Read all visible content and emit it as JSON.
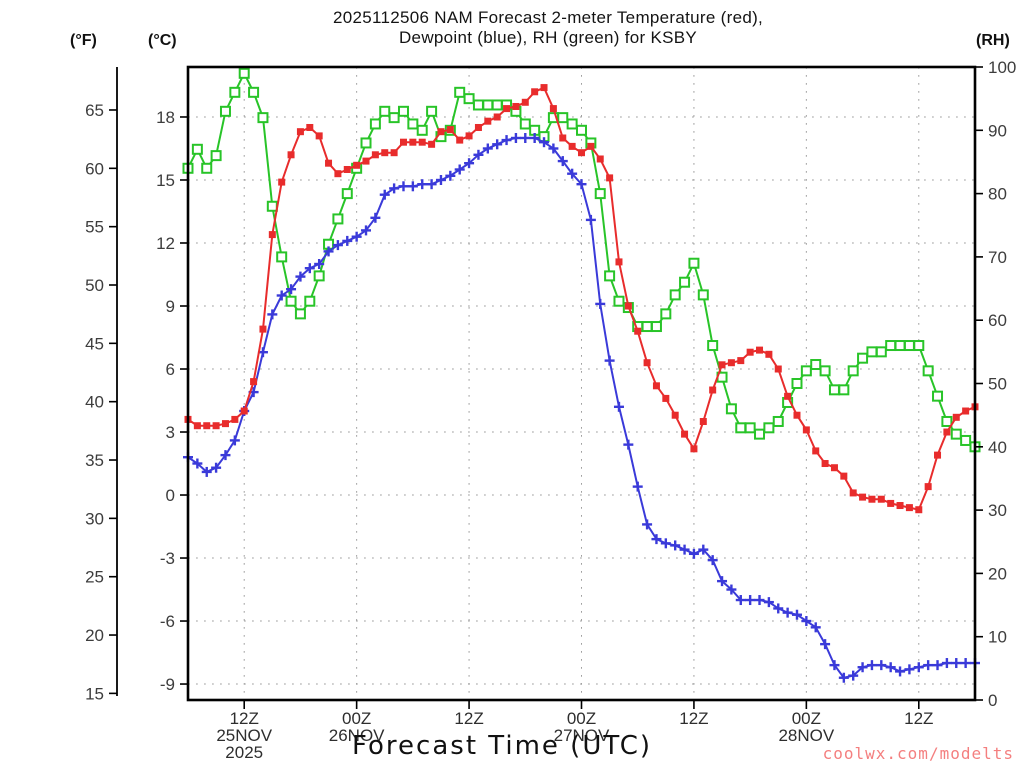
{
  "title": {
    "line1": "2025112506 NAM Forecast 2-meter Temperature (red),",
    "line2": "Dewpoint (blue), RH (green) for KSBY"
  },
  "axes": {
    "fahrenheit": {
      "label": "(°F)",
      "ticks": [
        65,
        60,
        55,
        50,
        45,
        40,
        35,
        30,
        25,
        20,
        15
      ]
    },
    "celsius": {
      "label": "(°C)",
      "ticks": [
        18,
        15,
        12,
        9,
        6,
        3,
        0,
        -3,
        -6,
        -9
      ]
    },
    "rh": {
      "label": "(RH)",
      "ticks": [
        100,
        90,
        80,
        70,
        60,
        50,
        40,
        30,
        20,
        10,
        0
      ]
    }
  },
  "x_axis": {
    "label": "Forecast Time (UTC)",
    "ticks": [
      {
        "hour": 6,
        "label": "12Z",
        "date": "25NOV",
        "year": "2025"
      },
      {
        "hour": 18,
        "label": "00Z",
        "date": "26NOV",
        "year": ""
      },
      {
        "hour": 30,
        "label": "12Z",
        "date": "",
        "year": ""
      },
      {
        "hour": 42,
        "label": "00Z",
        "date": "27NOV",
        "year": ""
      },
      {
        "hour": 54,
        "label": "12Z",
        "date": "",
        "year": ""
      },
      {
        "hour": 66,
        "label": "00Z",
        "date": "28NOV",
        "year": ""
      },
      {
        "hour": 78,
        "label": "12Z",
        "date": "",
        "year": ""
      }
    ]
  },
  "watermark": {
    "text": "coolwx.com/modelts",
    "color": "#f47f7f"
  },
  "colors": {
    "temperature": "#e82c2c",
    "dewpoint": "#3a3ad9",
    "rh": "#28c428",
    "grid": "#a0a0a0",
    "frame": "#000000",
    "tick_text": "#3d3d3d"
  },
  "chart_data": {
    "type": "line",
    "model_run": "2025112506",
    "model": "NAM",
    "station": "KSBY",
    "x_unit": "hours since 06Z 25NOV2025",
    "interval_hours": 1,
    "xlim_hours": [
      0,
      84
    ],
    "ylim_celsius": [
      -9.76,
      20.38
    ],
    "ylim_rh": [
      0,
      100
    ],
    "grid": true,
    "series": [
      {
        "name": "2-meter Temperature",
        "unit": "°C",
        "axis": "celsius",
        "color": "#e82c2c",
        "marker": "filled-square",
        "values": [
          3.6,
          3.3,
          3.3,
          3.3,
          3.4,
          3.6,
          4.0,
          5.4,
          7.9,
          12.4,
          14.9,
          16.2,
          17.3,
          17.5,
          17.1,
          15.8,
          15.3,
          15.5,
          15.7,
          15.9,
          16.2,
          16.3,
          16.3,
          16.8,
          16.8,
          16.8,
          16.7,
          17.3,
          17.4,
          16.9,
          17.1,
          17.5,
          17.8,
          18.0,
          18.4,
          18.5,
          18.7,
          19.2,
          19.4,
          18.4,
          17.0,
          16.6,
          16.3,
          16.6,
          16.0,
          15.1,
          11.1,
          9.0,
          7.8,
          6.3,
          5.2,
          4.6,
          3.8,
          2.9,
          2.2,
          3.5,
          5.0,
          6.2,
          6.3,
          6.4,
          6.8,
          6.9,
          6.7,
          6.0,
          4.7,
          3.8,
          3.1,
          2.1,
          1.5,
          1.3,
          0.9,
          0.1,
          -0.1,
          -0.2,
          -0.2,
          -0.4,
          -0.5,
          -0.6,
          -0.7,
          0.4,
          1.9,
          3.0,
          3.7,
          4.0,
          4.2
        ]
      },
      {
        "name": "Dewpoint",
        "unit": "°C",
        "axis": "celsius",
        "color": "#3a3ad9",
        "marker": "plus",
        "values": [
          1.8,
          1.5,
          1.1,
          1.3,
          1.9,
          2.6,
          4.0,
          4.9,
          6.8,
          8.6,
          9.5,
          9.8,
          10.4,
          10.8,
          11.0,
          11.6,
          11.9,
          12.1,
          12.3,
          12.6,
          13.2,
          14.3,
          14.6,
          14.7,
          14.7,
          14.8,
          14.8,
          15.0,
          15.2,
          15.5,
          15.8,
          16.2,
          16.5,
          16.7,
          16.9,
          17.0,
          17.0,
          17.0,
          16.8,
          16.5,
          15.9,
          15.3,
          14.8,
          13.1,
          9.1,
          6.4,
          4.2,
          2.4,
          0.4,
          -1.4,
          -2.1,
          -2.3,
          -2.4,
          -2.6,
          -2.8,
          -2.6,
          -3.1,
          -4.1,
          -4.5,
          -5.0,
          -5.0,
          -5.0,
          -5.1,
          -5.4,
          -5.6,
          -5.7,
          -6.0,
          -6.3,
          -7.1,
          -8.1,
          -8.7,
          -8.6,
          -8.2,
          -8.1,
          -8.1,
          -8.2,
          -8.4,
          -8.3,
          -8.2,
          -8.1,
          -8.1,
          -8.0,
          -8.0,
          -8.0,
          -8.0
        ]
      },
      {
        "name": "RH",
        "unit": "%",
        "axis": "rh",
        "color": "#28c428",
        "marker": "open-square",
        "values": [
          84,
          87,
          84,
          86,
          93,
          96,
          99,
          96,
          92,
          78,
          70,
          63,
          61,
          63,
          67,
          72,
          76,
          80,
          84,
          88,
          91,
          93,
          92,
          93,
          91,
          90,
          93,
          89,
          90,
          96,
          95,
          94,
          94,
          94,
          94,
          93,
          91,
          90,
          89,
          92,
          92,
          91,
          90,
          88,
          80,
          67,
          63,
          62,
          59,
          59,
          59,
          61,
          64,
          66,
          69,
          64,
          56,
          51,
          46,
          43,
          43,
          42,
          43,
          44,
          47,
          50,
          52,
          53,
          52,
          49,
          49,
          52,
          54,
          55,
          55,
          56,
          56,
          56,
          56,
          52,
          48,
          44,
          42,
          41,
          40
        ]
      }
    ]
  }
}
